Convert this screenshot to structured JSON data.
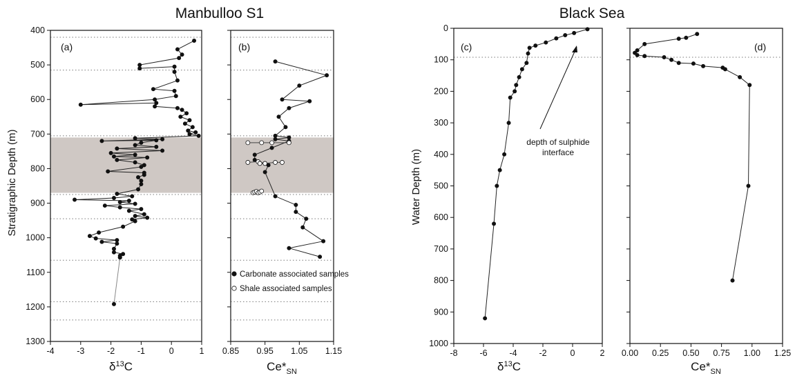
{
  "titles": {
    "left": "Manbulloo S1",
    "right": "Black Sea"
  },
  "annotation": {
    "line1": "depth of sulphide",
    "line2": "interface"
  },
  "legend": {
    "carbonate": "Carbonate associated samples",
    "shale": "Shale associated samples"
  },
  "chart_data": [
    {
      "type": "line",
      "panel_label": "(a)",
      "ylabel": "Stratigraphic Depth (m)",
      "xlabel": "δ13C",
      "xlim": [
        -4,
        1
      ],
      "ylim": [
        400,
        1300
      ],
      "y_inverted": true,
      "xticks": [
        -4,
        -3,
        -2,
        -1,
        0,
        1
      ],
      "yticks": [
        400,
        500,
        600,
        700,
        800,
        900,
        1000,
        1100,
        1200,
        1300
      ],
      "shaded_band": [
        710,
        870
      ],
      "dotted_lines": [
        420,
        515,
        705,
        875,
        945,
        1065,
        1185,
        1238
      ],
      "series": [
        {
          "marker": "filled",
          "points": [
            [
              0.75,
              430
            ],
            [
              0.2,
              455
            ],
            [
              0.35,
              470
            ],
            [
              0.25,
              480
            ],
            [
              -1.05,
              500
            ],
            [
              -1.05,
              510
            ],
            [
              0.1,
              505
            ],
            [
              0.1,
              520
            ],
            [
              0.2,
              545
            ],
            [
              -0.6,
              570
            ],
            [
              0.1,
              575
            ],
            [
              0.15,
              590
            ],
            [
              -0.55,
              600
            ],
            [
              -3,
              615
            ],
            [
              -0.5,
              610
            ],
            [
              -0.55,
              620
            ],
            [
              0.2,
              625
            ],
            [
              0.35,
              630
            ],
            [
              0.5,
              640
            ],
            [
              0.3,
              650
            ],
            [
              0.6,
              660
            ],
            [
              0.45,
              670
            ],
            [
              0.7,
              680
            ],
            [
              0.55,
              690
            ],
            [
              0.8,
              695
            ],
            [
              0.6,
              700
            ],
            [
              0.9,
              705
            ],
            [
              -1.2,
              712
            ],
            [
              -0.3,
              715
            ],
            [
              -2.3,
              720
            ],
            [
              -0.5,
              718
            ],
            [
              -1.0,
              725
            ],
            [
              -1.2,
              732
            ],
            [
              -0.5,
              737
            ],
            [
              -1.8,
              742
            ],
            [
              -0.3,
              748
            ],
            [
              -2,
              755
            ],
            [
              -1.2,
              760
            ],
            [
              -1.9,
              765
            ],
            [
              -0.8,
              768
            ],
            [
              -1.8,
              775
            ],
            [
              -1.2,
              782
            ],
            [
              -0.9,
              790
            ],
            [
              -1,
              795
            ],
            [
              -2.1,
              808
            ],
            [
              -0.9,
              812
            ],
            [
              -0.9,
              818
            ],
            [
              -1.1,
              825
            ],
            [
              -1.0,
              835
            ],
            [
              -1.0,
              845
            ],
            [
              -1.1,
              860
            ],
            [
              -1.8,
              873
            ],
            [
              -1.3,
              880
            ],
            [
              -1.9,
              885
            ],
            [
              -3.2,
              890
            ],
            [
              -1.4,
              893
            ],
            [
              -1.7,
              897
            ],
            [
              -1.2,
              902
            ],
            [
              -2.2,
              907
            ],
            [
              -1.7,
              912
            ],
            [
              -1,
              917
            ],
            [
              -1.4,
              922
            ],
            [
              -0.9,
              932
            ],
            [
              -1.2,
              937
            ],
            [
              -0.8,
              942
            ],
            [
              -1.3,
              947
            ],
            [
              -1.2,
              952
            ],
            [
              -1.6,
              968
            ],
            [
              -2.4,
              985
            ],
            [
              -2.7,
              995
            ],
            [
              -2.5,
              1002
            ],
            [
              -1.8,
              1007
            ],
            [
              -2.3,
              1012
            ],
            [
              -1.8,
              1017
            ],
            [
              -1.9,
              1032
            ],
            [
              -1.9,
              1042
            ],
            [
              -1.6,
              1047
            ],
            [
              -1.7,
              1052
            ],
            [
              -1.7,
              1057
            ]
          ]
        },
        {
          "marker": "filled",
          "style": "gray",
          "points": [
            [
              -1.7,
              1057
            ],
            [
              -1.9,
              1192
            ]
          ]
        }
      ]
    },
    {
      "type": "line",
      "panel_label": "(b)",
      "xlabel": "Ce*SN",
      "xlim": [
        0.85,
        1.15
      ],
      "ylim": [
        400,
        1300
      ],
      "y_inverted": true,
      "xticks": [
        0.85,
        0.95,
        1.05,
        1.15
      ],
      "shaded_band": [
        710,
        870
      ],
      "dotted_lines": [
        420,
        515,
        705,
        875,
        945,
        1065,
        1185,
        1238
      ],
      "series": [
        {
          "name": "Carbonate associated samples",
          "marker": "filled",
          "points": [
            [
              0.98,
              490
            ],
            [
              1.13,
              530
            ],
            [
              1.05,
              560
            ],
            [
              1.0,
              600
            ],
            [
              1.08,
              605
            ],
            [
              1.02,
              625
            ],
            [
              0.99,
              650
            ],
            [
              1.01,
              680
            ],
            [
              0.98,
              705
            ],
            [
              1.02,
              710
            ],
            [
              0.98,
              715
            ],
            [
              1.02,
              720
            ],
            [
              0.97,
              740
            ],
            [
              0.92,
              760
            ],
            [
              0.92,
              775
            ],
            [
              0.96,
              790
            ],
            [
              0.95,
              810
            ],
            [
              0.98,
              880
            ],
            [
              1.04,
              905
            ],
            [
              1.04,
              925
            ],
            [
              1.07,
              945
            ],
            [
              1.06,
              970
            ],
            [
              1.12,
              1010
            ],
            [
              1.02,
              1030
            ],
            [
              1.11,
              1055
            ]
          ]
        },
        {
          "name": "Shale associated samples",
          "marker": "open",
          "points": [
            [
              0.9,
              725
            ],
            [
              0.94,
              725
            ],
            [
              0.97,
              725
            ],
            [
              1.02,
              725
            ],
            [
              0.9,
              782
            ],
            [
              0.93,
              780
            ],
            [
              0.935,
              785
            ],
            [
              0.95,
              785
            ],
            [
              0.98,
              782
            ],
            [
              1.0,
              782
            ],
            [
              0.915,
              870
            ],
            [
              0.92,
              868
            ],
            [
              0.925,
              866
            ],
            [
              0.93,
              870
            ],
            [
              0.935,
              868
            ],
            [
              0.94,
              865
            ]
          ]
        }
      ]
    },
    {
      "type": "line",
      "panel_label": "(c)",
      "ylabel": "Water Depth (m)",
      "xlabel": "δ13C",
      "xlim": [
        -8,
        2
      ],
      "ylim": [
        0,
        1000
      ],
      "y_inverted": true,
      "xticks": [
        -8,
        -6,
        -4,
        -2,
        0,
        2
      ],
      "yticks": [
        0,
        100,
        200,
        300,
        400,
        500,
        600,
        700,
        800,
        900,
        1000
      ],
      "dotted_lines": [
        92
      ],
      "series": [
        {
          "marker": "filled",
          "points": [
            [
              1,
              3
            ],
            [
              0.1,
              15
            ],
            [
              -0.5,
              22
            ],
            [
              -1.1,
              32
            ],
            [
              -1.8,
              45
            ],
            [
              -2.5,
              55
            ],
            [
              -2.9,
              62
            ],
            [
              -3.0,
              80
            ],
            [
              -3.1,
              110
            ],
            [
              -3.4,
              130
            ],
            [
              -3.6,
              155
            ],
            [
              -3.8,
              180
            ],
            [
              -3.9,
              200
            ],
            [
              -4.2,
              220
            ],
            [
              -4.3,
              300
            ],
            [
              -4.6,
              400
            ],
            [
              -4.9,
              450
            ],
            [
              -5.1,
              500
            ],
            [
              -5.3,
              620
            ],
            [
              -5.9,
              920
            ]
          ]
        }
      ]
    },
    {
      "type": "line",
      "panel_label": "(d)",
      "xlabel": "Ce*SN",
      "xlim": [
        0,
        1.25
      ],
      "ylim": [
        0,
        1000
      ],
      "y_inverted": true,
      "xticks": [
        0.0,
        0.25,
        0.5,
        0.75,
        1.0,
        1.25
      ],
      "dotted_lines": [
        92
      ],
      "series": [
        {
          "marker": "filled",
          "points": [
            [
              0.55,
              18
            ],
            [
              0.46,
              30
            ],
            [
              0.4,
              33
            ],
            [
              0.12,
              50
            ],
            [
              0.06,
              70
            ],
            [
              0.04,
              78
            ],
            [
              0.06,
              85
            ],
            [
              0.12,
              88
            ],
            [
              0.28,
              92
            ],
            [
              0.34,
              100
            ],
            [
              0.4,
              110
            ],
            [
              0.52,
              112
            ],
            [
              0.6,
              120
            ],
            [
              0.76,
              125
            ],
            [
              0.78,
              130
            ],
            [
              0.9,
              155
            ],
            [
              0.98,
              180
            ],
            [
              0.97,
              500
            ],
            [
              0.84,
              800
            ]
          ]
        }
      ]
    }
  ]
}
